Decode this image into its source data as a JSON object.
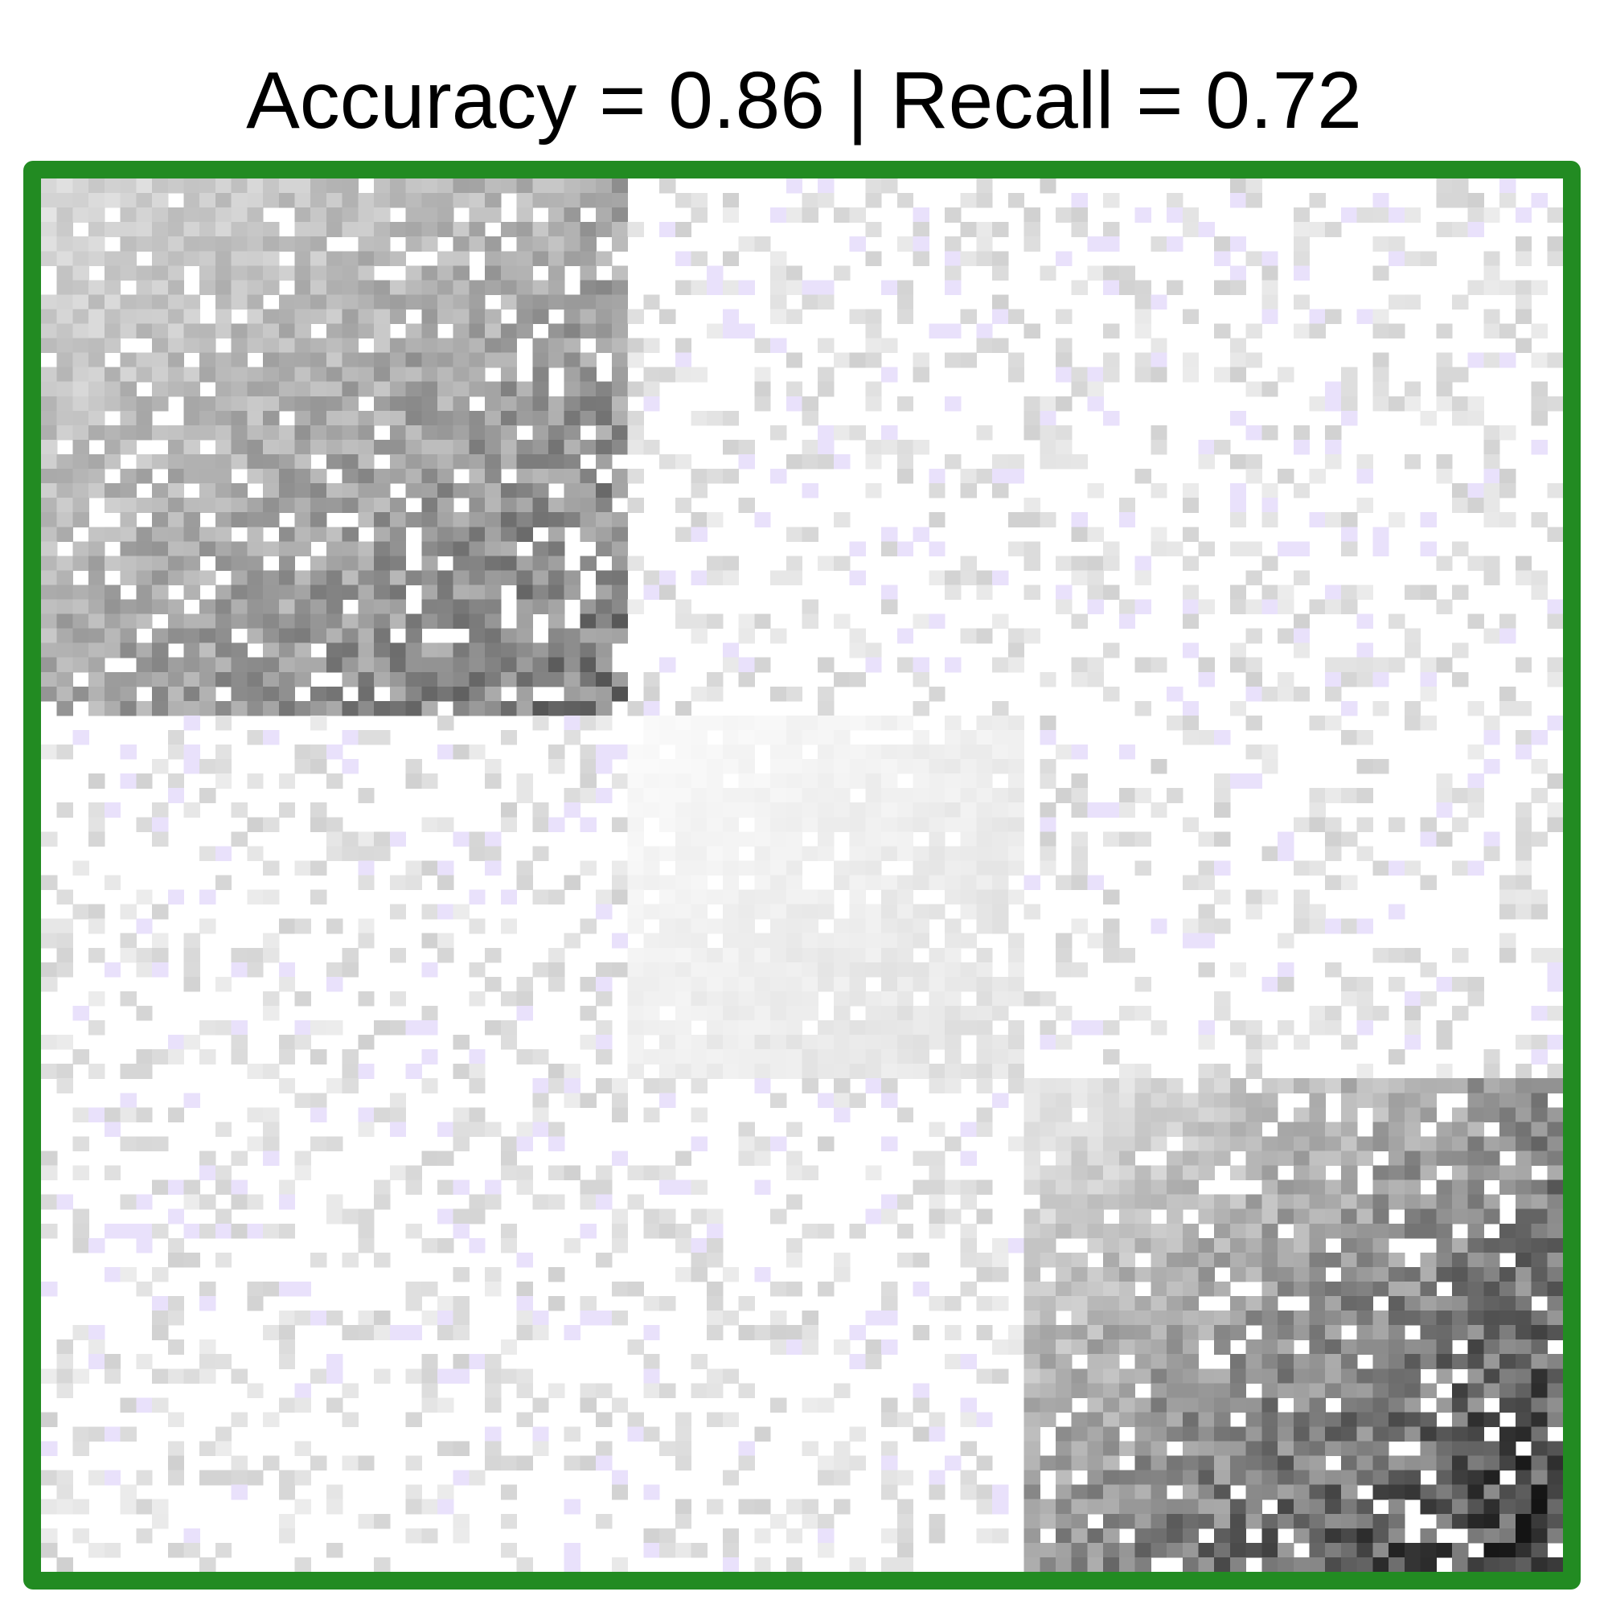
{
  "chart_data": {
    "type": "heatmap",
    "title": "Accuracy = 0.86 | Recall = 0.72",
    "xlabel": "",
    "ylabel": "",
    "grid": false,
    "frame_color": "#228b22",
    "colors": {
      "high": "#111111",
      "low": "#ffffff",
      "cross_block_tint": "#e9e1fb"
    },
    "grid_size": [
      96,
      96
    ],
    "blocks": [
      {
        "name": "block-1",
        "rows": [
          0,
          37
        ],
        "cols": [
          0,
          37
        ],
        "start_intensity": 0.15,
        "end_intensity": 0.55
      },
      {
        "name": "block-2",
        "rows": [
          37,
          62
        ],
        "cols": [
          37,
          62
        ],
        "start_intensity": 0.02,
        "end_intensity": 0.12
      },
      {
        "name": "block-3",
        "rows": [
          62,
          96
        ],
        "cols": [
          62,
          96
        ],
        "start_intensity": 0.08,
        "end_intensity": 0.8
      }
    ]
  }
}
